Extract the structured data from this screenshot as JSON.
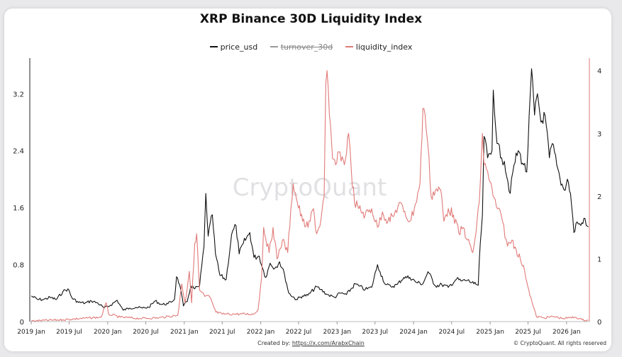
{
  "chart_data": {
    "type": "line",
    "title": "XRP Binance 30D Liquidity Index",
    "watermark": "CryptoQuant",
    "x_tick_labels": [
      "2019 Jan",
      "2019 Jul",
      "2020 Jan",
      "2020 Jul",
      "2021 Jan",
      "2021 Jul",
      "2022 Jan",
      "2022 Jul",
      "2023 Jan",
      "2023 Jul",
      "2024 Jan",
      "2024 Jul",
      "2025 Jan",
      "2025 Jul",
      "2026 Jan"
    ],
    "x_range": [
      "2018-12-25",
      "2026-04-20"
    ],
    "y_left": {
      "ticks": [
        "0",
        "0.8",
        "1.6",
        "2.4",
        "3.2"
      ],
      "tick_values": [
        0,
        0.8,
        1.6,
        2.4,
        3.2
      ],
      "range": [
        0,
        3.7
      ]
    },
    "y_right": {
      "ticks": [
        "0",
        "1",
        "2",
        "3",
        "4"
      ],
      "tick_values": [
        0,
        1,
        2,
        3,
        4
      ],
      "range": [
        0,
        4.2
      ]
    },
    "grid": false,
    "legend_placement": "top-center",
    "series": [
      {
        "name": "price_usd",
        "axis": "left",
        "color": "#111111",
        "visible": true,
        "points": [
          [
            "2019-01-01",
            0.36
          ],
          [
            "2019-02-01",
            0.31
          ],
          [
            "2019-03-01",
            0.31
          ],
          [
            "2019-04-01",
            0.34
          ],
          [
            "2019-05-01",
            0.31
          ],
          [
            "2019-06-01",
            0.42
          ],
          [
            "2019-06-25",
            0.46
          ],
          [
            "2019-07-15",
            0.33
          ],
          [
            "2019-08-15",
            0.27
          ],
          [
            "2019-09-15",
            0.26
          ],
          [
            "2019-10-15",
            0.29
          ],
          [
            "2019-11-15",
            0.26
          ],
          [
            "2019-12-15",
            0.19
          ],
          [
            "2020-01-15",
            0.23
          ],
          [
            "2020-02-15",
            0.3
          ],
          [
            "2020-03-15",
            0.16
          ],
          [
            "2020-04-15",
            0.19
          ],
          [
            "2020-05-15",
            0.2
          ],
          [
            "2020-06-15",
            0.19
          ],
          [
            "2020-07-15",
            0.2
          ],
          [
            "2020-08-15",
            0.29
          ],
          [
            "2020-09-15",
            0.24
          ],
          [
            "2020-10-15",
            0.25
          ],
          [
            "2020-11-15",
            0.31
          ],
          [
            "2020-11-25",
            0.63
          ],
          [
            "2020-12-10",
            0.52
          ],
          [
            "2020-12-28",
            0.22
          ],
          [
            "2021-01-15",
            0.28
          ],
          [
            "2021-02-01",
            0.5
          ],
          [
            "2021-02-20",
            0.46
          ],
          [
            "2021-03-15",
            0.5
          ],
          [
            "2021-04-05",
            1.05
          ],
          [
            "2021-04-14",
            1.8
          ],
          [
            "2021-04-25",
            1.2
          ],
          [
            "2021-05-15",
            1.5
          ],
          [
            "2021-05-30",
            0.95
          ],
          [
            "2021-06-20",
            0.65
          ],
          [
            "2021-07-20",
            0.59
          ],
          [
            "2021-08-15",
            1.22
          ],
          [
            "2021-09-05",
            1.35
          ],
          [
            "2021-09-20",
            0.95
          ],
          [
            "2021-10-10",
            1.1
          ],
          [
            "2021-11-10",
            1.25
          ],
          [
            "2021-11-30",
            0.9
          ],
          [
            "2021-12-25",
            0.92
          ],
          [
            "2022-01-10",
            0.75
          ],
          [
            "2022-01-25",
            0.62
          ],
          [
            "2022-02-15",
            0.82
          ],
          [
            "2022-03-10",
            0.75
          ],
          [
            "2022-04-01",
            0.84
          ],
          [
            "2022-04-25",
            0.66
          ],
          [
            "2022-05-15",
            0.4
          ],
          [
            "2022-06-20",
            0.31
          ],
          [
            "2022-07-20",
            0.36
          ],
          [
            "2022-08-15",
            0.37
          ],
          [
            "2022-09-25",
            0.49
          ],
          [
            "2022-10-15",
            0.45
          ],
          [
            "2022-11-15",
            0.38
          ],
          [
            "2022-12-20",
            0.34
          ],
          [
            "2023-01-15",
            0.4
          ],
          [
            "2023-02-15",
            0.38
          ],
          [
            "2023-03-29",
            0.53
          ],
          [
            "2023-04-15",
            0.5
          ],
          [
            "2023-05-15",
            0.45
          ],
          [
            "2023-06-15",
            0.48
          ],
          [
            "2023-07-13",
            0.8
          ],
          [
            "2023-07-25",
            0.7
          ],
          [
            "2023-08-20",
            0.52
          ],
          [
            "2023-09-15",
            0.49
          ],
          [
            "2023-10-15",
            0.52
          ],
          [
            "2023-11-15",
            0.62
          ],
          [
            "2023-12-15",
            0.62
          ],
          [
            "2024-01-15",
            0.55
          ],
          [
            "2024-02-15",
            0.53
          ],
          [
            "2024-03-10",
            0.7
          ],
          [
            "2024-04-15",
            0.5
          ],
          [
            "2024-05-15",
            0.52
          ],
          [
            "2024-06-15",
            0.48
          ],
          [
            "2024-07-25",
            0.6
          ],
          [
            "2024-08-15",
            0.57
          ],
          [
            "2024-09-15",
            0.58
          ],
          [
            "2024-10-15",
            0.53
          ],
          [
            "2024-11-05",
            0.51
          ],
          [
            "2024-11-15",
            1.1
          ],
          [
            "2024-11-25",
            1.5
          ],
          [
            "2024-12-03",
            2.6
          ],
          [
            "2024-12-20",
            2.3
          ],
          [
            "2025-01-10",
            2.4
          ],
          [
            "2025-01-16",
            3.25
          ],
          [
            "2025-02-03",
            2.5
          ],
          [
            "2025-02-25",
            2.3
          ],
          [
            "2025-03-10",
            2.25
          ],
          [
            "2025-04-07",
            1.8
          ],
          [
            "2025-04-25",
            2.2
          ],
          [
            "2025-05-15",
            2.4
          ],
          [
            "2025-06-10",
            2.2
          ],
          [
            "2025-06-25",
            2.1
          ],
          [
            "2025-07-18",
            3.55
          ],
          [
            "2025-08-01",
            2.9
          ],
          [
            "2025-08-15",
            3.2
          ],
          [
            "2025-09-01",
            2.8
          ],
          [
            "2025-09-20",
            2.9
          ],
          [
            "2025-10-11",
            2.3
          ],
          [
            "2025-10-25",
            2.5
          ],
          [
            "2025-11-15",
            2.2
          ],
          [
            "2025-12-01",
            2.0
          ],
          [
            "2025-12-20",
            1.85
          ],
          [
            "2026-01-05",
            2.0
          ],
          [
            "2026-01-20",
            1.8
          ],
          [
            "2026-02-05",
            1.25
          ],
          [
            "2026-02-20",
            1.4
          ],
          [
            "2026-03-10",
            1.35
          ],
          [
            "2026-03-25",
            1.45
          ],
          [
            "2026-04-05",
            1.35
          ],
          [
            "2026-04-15",
            1.33
          ]
        ]
      },
      {
        "name": "turnover_30d",
        "axis": "right",
        "color": "#9a9a9a",
        "visible": false,
        "points": []
      },
      {
        "name": "liquidity_index",
        "axis": "right",
        "color": "#e07a78",
        "visible": true,
        "points": [
          [
            "2019-01-01",
            0.01
          ],
          [
            "2019-06-01",
            0.03
          ],
          [
            "2019-12-01",
            0.07
          ],
          [
            "2019-12-25",
            0.3
          ],
          [
            "2020-01-05",
            0.12
          ],
          [
            "2020-03-01",
            0.07
          ],
          [
            "2020-06-01",
            0.05
          ],
          [
            "2020-09-01",
            0.06
          ],
          [
            "2020-12-01",
            0.1
          ],
          [
            "2020-12-20",
            0.6
          ],
          [
            "2021-01-05",
            0.3
          ],
          [
            "2021-01-25",
            0.8
          ],
          [
            "2021-02-05",
            0.3
          ],
          [
            "2021-02-20",
            1.25
          ],
          [
            "2021-03-01",
            1.4
          ],
          [
            "2021-03-15",
            0.5
          ],
          [
            "2021-04-10",
            0.4
          ],
          [
            "2021-05-01",
            0.4
          ],
          [
            "2021-06-01",
            0.15
          ],
          [
            "2021-07-01",
            0.12
          ],
          [
            "2021-09-01",
            0.12
          ],
          [
            "2021-12-01",
            0.12
          ],
          [
            "2021-12-20",
            0.2
          ],
          [
            "2022-01-05",
            0.7
          ],
          [
            "2022-01-15",
            1.5
          ],
          [
            "2022-02-10",
            1.1
          ],
          [
            "2022-03-01",
            1.5
          ],
          [
            "2022-03-20",
            1.0
          ],
          [
            "2022-04-15",
            1.3
          ],
          [
            "2022-05-10",
            1.1
          ],
          [
            "2022-05-25",
            1.8
          ],
          [
            "2022-06-05",
            2.2
          ],
          [
            "2022-06-25",
            1.9
          ],
          [
            "2022-07-20",
            1.6
          ],
          [
            "2022-08-15",
            1.5
          ],
          [
            "2022-09-10",
            1.8
          ],
          [
            "2022-09-25",
            1.4
          ],
          [
            "2022-10-15",
            1.6
          ],
          [
            "2022-10-31",
            2.0
          ],
          [
            "2022-11-08",
            3.8
          ],
          [
            "2022-11-14",
            4.0
          ],
          [
            "2022-11-25",
            3.3
          ],
          [
            "2022-12-10",
            2.6
          ],
          [
            "2022-12-25",
            2.5
          ],
          [
            "2023-01-15",
            2.7
          ],
          [
            "2023-02-05",
            2.5
          ],
          [
            "2023-02-25",
            3.0
          ],
          [
            "2023-03-10",
            2.4
          ],
          [
            "2023-03-25",
            1.9
          ],
          [
            "2023-04-15",
            1.8
          ],
          [
            "2023-05-15",
            1.7
          ],
          [
            "2023-06-15",
            1.8
          ],
          [
            "2023-07-13",
            1.5
          ],
          [
            "2023-08-05",
            1.75
          ],
          [
            "2023-09-01",
            1.6
          ],
          [
            "2023-10-01",
            1.7
          ],
          [
            "2023-10-25",
            1.9
          ],
          [
            "2023-11-15",
            1.75
          ],
          [
            "2023-12-15",
            1.6
          ],
          [
            "2024-01-05",
            1.8
          ],
          [
            "2024-02-01",
            2.2
          ],
          [
            "2024-02-15",
            3.4
          ],
          [
            "2024-02-25",
            3.3
          ],
          [
            "2024-03-10",
            2.8
          ],
          [
            "2024-03-25",
            2.0
          ],
          [
            "2024-04-15",
            2.1
          ],
          [
            "2024-05-10",
            2.1
          ],
          [
            "2024-05-25",
            1.6
          ],
          [
            "2024-06-15",
            1.8
          ],
          [
            "2024-07-10",
            1.7
          ],
          [
            "2024-08-05",
            1.4
          ],
          [
            "2024-08-25",
            1.5
          ],
          [
            "2024-09-15",
            1.3
          ],
          [
            "2024-10-10",
            1.1
          ],
          [
            "2024-10-25",
            1.4
          ],
          [
            "2024-11-10",
            1.9
          ],
          [
            "2024-11-25",
            3.0
          ],
          [
            "2024-12-03",
            2.5
          ],
          [
            "2024-12-20",
            2.4
          ],
          [
            "2025-01-15",
            2.0
          ],
          [
            "2025-02-05",
            1.8
          ],
          [
            "2025-03-01",
            1.6
          ],
          [
            "2025-03-25",
            1.2
          ],
          [
            "2025-04-15",
            1.3
          ],
          [
            "2025-05-05",
            1.15
          ],
          [
            "2025-05-25",
            1.0
          ],
          [
            "2025-06-15",
            0.8
          ],
          [
            "2025-07-05",
            0.5
          ],
          [
            "2025-07-25",
            0.25
          ],
          [
            "2025-08-10",
            0.08
          ],
          [
            "2025-09-15",
            0.06
          ],
          [
            "2025-11-01",
            0.08
          ],
          [
            "2025-12-15",
            0.05
          ],
          [
            "2026-01-15",
            0.06
          ],
          [
            "2026-02-15",
            0.07
          ],
          [
            "2026-03-15",
            0.03
          ],
          [
            "2026-04-15",
            0.02
          ]
        ]
      }
    ]
  },
  "footer": {
    "created_by_label": "Created by:",
    "created_by_link": "https://x.com/ArabxChain",
    "rights": "© CryptoQuant. All rights reserved"
  }
}
